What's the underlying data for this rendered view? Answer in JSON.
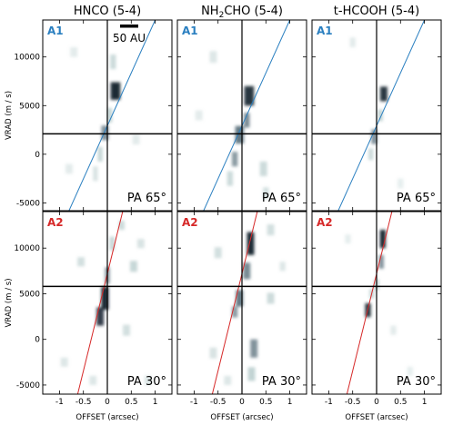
{
  "chart_data": {
    "type": "heatmap",
    "layout": "2x3 grid of position-velocity diagrams",
    "columns": [
      {
        "title_main": "HNCO (5-4)",
        "title_parts": null
      },
      {
        "title_main": "",
        "title_parts": [
          "NH",
          "2",
          "CHO (5-4)"
        ]
      },
      {
        "title_main": "t-HCOOH (5-4)",
        "title_parts": null
      }
    ],
    "xlabel": "OFFSET (arcsec)",
    "ylabel": "VRAD (m / s)",
    "xlim": [
      -1.35,
      1.35
    ],
    "xticks": [
      -1,
      -0.5,
      0,
      0.5,
      1
    ],
    "xticklabels": [
      "-1",
      "-0.5",
      "0",
      "0.5",
      "1"
    ],
    "rows": [
      {
        "label": "A1",
        "label_color": "#2a7fc0",
        "line_color": "#2a7fc0",
        "pa": "PA 65°",
        "ylim": [
          -5800,
          13800
        ],
        "yticks": [
          -5000,
          0,
          5000,
          10000
        ],
        "yticklabels": [
          "-5000",
          "0",
          "5000",
          "10000"
        ],
        "center_velocity": 2100,
        "line": [
          [
            -0.82,
            -6000
          ],
          [
            1.0,
            13800
          ]
        ],
        "panels": [
          {
            "column": "HNCO (5-4)",
            "blobs": [
              {
                "x": 0.17,
                "y": 6500,
                "w": 0.2,
                "h": 1800,
                "a": 0.9
              },
              {
                "x": 0.12,
                "y": 9500,
                "w": 0.12,
                "h": 1500,
                "a": 0.35
              },
              {
                "x": 0.05,
                "y": 4000,
                "w": 0.1,
                "h": 1500,
                "a": 0.45
              },
              {
                "x": -0.05,
                "y": 2200,
                "w": 0.15,
                "h": 1500,
                "a": 0.55
              },
              {
                "x": -0.15,
                "y": 0,
                "w": 0.1,
                "h": 1500,
                "a": 0.4
              },
              {
                "x": -0.25,
                "y": -2000,
                "w": 0.1,
                "h": 1500,
                "a": 0.25
              },
              {
                "x": -0.7,
                "y": 10500,
                "w": 0.15,
                "h": 1000,
                "a": 0.15
              },
              {
                "x": -0.8,
                "y": -1500,
                "w": 0.15,
                "h": 1000,
                "a": 0.15
              },
              {
                "x": 0.6,
                "y": 1500,
                "w": 0.15,
                "h": 1000,
                "a": 0.15
              }
            ]
          },
          {
            "column": "NH2CHO (5-4)",
            "blobs": [
              {
                "x": 0.15,
                "y": 6000,
                "w": 0.2,
                "h": 2000,
                "a": 0.85
              },
              {
                "x": 0.1,
                "y": 3500,
                "w": 0.12,
                "h": 1500,
                "a": 0.6
              },
              {
                "x": -0.05,
                "y": 2000,
                "w": 0.18,
                "h": 1800,
                "a": 0.7
              },
              {
                "x": -0.15,
                "y": -500,
                "w": 0.12,
                "h": 1500,
                "a": 0.5
              },
              {
                "x": -0.25,
                "y": -2500,
                "w": 0.12,
                "h": 1500,
                "a": 0.35
              },
              {
                "x": 0.45,
                "y": -1500,
                "w": 0.15,
                "h": 1500,
                "a": 0.35
              },
              {
                "x": 0.5,
                "y": -4000,
                "w": 0.12,
                "h": 1200,
                "a": 0.3
              },
              {
                "x": -0.6,
                "y": 10000,
                "w": 0.15,
                "h": 1200,
                "a": 0.2
              },
              {
                "x": -0.9,
                "y": 4000,
                "w": 0.15,
                "h": 1000,
                "a": 0.15
              }
            ]
          },
          {
            "column": "t-HCOOH (5-4)",
            "blobs": [
              {
                "x": 0.15,
                "y": 6200,
                "w": 0.15,
                "h": 1500,
                "a": 0.85
              },
              {
                "x": 0.08,
                "y": 4000,
                "w": 0.1,
                "h": 1200,
                "a": 0.45
              },
              {
                "x": -0.05,
                "y": 1800,
                "w": 0.12,
                "h": 1500,
                "a": 0.55
              },
              {
                "x": -0.12,
                "y": 0,
                "w": 0.1,
                "h": 1200,
                "a": 0.35
              },
              {
                "x": -0.5,
                "y": 11500,
                "w": 0.12,
                "h": 1000,
                "a": 0.15
              },
              {
                "x": 0.5,
                "y": -3000,
                "w": 0.12,
                "h": 1000,
                "a": 0.12
              }
            ]
          }
        ]
      },
      {
        "label": "A2",
        "label_color": "#d62828",
        "line_color": "#d62828",
        "pa": "PA 30°",
        "ylim": [
          -6000,
          14000
        ],
        "yticks": [
          -5000,
          0,
          5000,
          10000
        ],
        "yticklabels": [
          "-5000",
          "0",
          "5000",
          "10000"
        ],
        "center_velocity": 5800,
        "line": [
          [
            -0.62,
            -6000
          ],
          [
            0.32,
            14000
          ]
        ],
        "panels": [
          {
            "column": "HNCO (5-4)",
            "blobs": [
              {
                "x": -0.05,
                "y": 4500,
                "w": 0.15,
                "h": 2500,
                "a": 0.9
              },
              {
                "x": -0.15,
                "y": 2500,
                "w": 0.15,
                "h": 2000,
                "a": 0.8
              },
              {
                "x": 0.0,
                "y": 7000,
                "w": 0.1,
                "h": 1800,
                "a": 0.55
              },
              {
                "x": 0.1,
                "y": 10500,
                "w": 0.1,
                "h": 1500,
                "a": 0.4
              },
              {
                "x": 0.3,
                "y": 12500,
                "w": 0.12,
                "h": 1000,
                "a": 0.35
              },
              {
                "x": 0.55,
                "y": 8000,
                "w": 0.15,
                "h": 1200,
                "a": 0.4
              },
              {
                "x": 0.4,
                "y": 1000,
                "w": 0.15,
                "h": 1200,
                "a": 0.3
              },
              {
                "x": -0.55,
                "y": 8500,
                "w": 0.15,
                "h": 1000,
                "a": 0.3
              },
              {
                "x": -0.9,
                "y": -2500,
                "w": 0.15,
                "h": 1000,
                "a": 0.2
              },
              {
                "x": 0.85,
                "y": -4500,
                "w": 0.15,
                "h": 1000,
                "a": 0.2
              },
              {
                "x": -0.3,
                "y": -4500,
                "w": 0.15,
                "h": 1000,
                "a": 0.2
              },
              {
                "x": 0.7,
                "y": 10500,
                "w": 0.15,
                "h": 1000,
                "a": 0.25
              }
            ]
          },
          {
            "column": "NH2CHO (5-4)",
            "blobs": [
              {
                "x": 0.18,
                "y": 10500,
                "w": 0.15,
                "h": 2500,
                "a": 0.9
              },
              {
                "x": 0.1,
                "y": 7500,
                "w": 0.15,
                "h": 1800,
                "a": 0.6
              },
              {
                "x": -0.05,
                "y": 4500,
                "w": 0.15,
                "h": 1800,
                "a": 0.7
              },
              {
                "x": -0.15,
                "y": 3000,
                "w": 0.12,
                "h": 1200,
                "a": 0.5
              },
              {
                "x": 0.25,
                "y": -1000,
                "w": 0.15,
                "h": 2000,
                "a": 0.55
              },
              {
                "x": 0.2,
                "y": -3800,
                "w": 0.15,
                "h": 1500,
                "a": 0.45
              },
              {
                "x": 0.6,
                "y": 4500,
                "w": 0.15,
                "h": 1200,
                "a": 0.35
              },
              {
                "x": 0.6,
                "y": 12000,
                "w": 0.15,
                "h": 1200,
                "a": 0.3
              },
              {
                "x": -0.5,
                "y": 9500,
                "w": 0.15,
                "h": 1200,
                "a": 0.3
              },
              {
                "x": -0.6,
                "y": -1500,
                "w": 0.15,
                "h": 1200,
                "a": 0.25
              },
              {
                "x": -0.3,
                "y": -4500,
                "w": 0.15,
                "h": 1000,
                "a": 0.2
              },
              {
                "x": 0.85,
                "y": 8000,
                "w": 0.12,
                "h": 1000,
                "a": 0.2
              }
            ]
          },
          {
            "column": "t-HCOOH (5-4)",
            "blobs": [
              {
                "x": 0.13,
                "y": 11000,
                "w": 0.12,
                "h": 2000,
                "a": 0.9
              },
              {
                "x": 0.1,
                "y": 8500,
                "w": 0.1,
                "h": 1500,
                "a": 0.55
              },
              {
                "x": 0.0,
                "y": 6000,
                "w": 0.1,
                "h": 1200,
                "a": 0.4
              },
              {
                "x": -0.18,
                "y": 3200,
                "w": 0.12,
                "h": 1500,
                "a": 0.85
              },
              {
                "x": -0.1,
                "y": 5000,
                "w": 0.1,
                "h": 1000,
                "a": 0.4
              },
              {
                "x": 0.35,
                "y": 1000,
                "w": 0.12,
                "h": 1000,
                "a": 0.15
              },
              {
                "x": -0.6,
                "y": 11000,
                "w": 0.12,
                "h": 1000,
                "a": 0.12
              },
              {
                "x": 0.7,
                "y": -3500,
                "w": 0.12,
                "h": 1000,
                "a": 0.12
              }
            ]
          }
        ]
      }
    ],
    "annotation": {
      "text": "50 AU",
      "row": 0,
      "column": 0
    }
  }
}
